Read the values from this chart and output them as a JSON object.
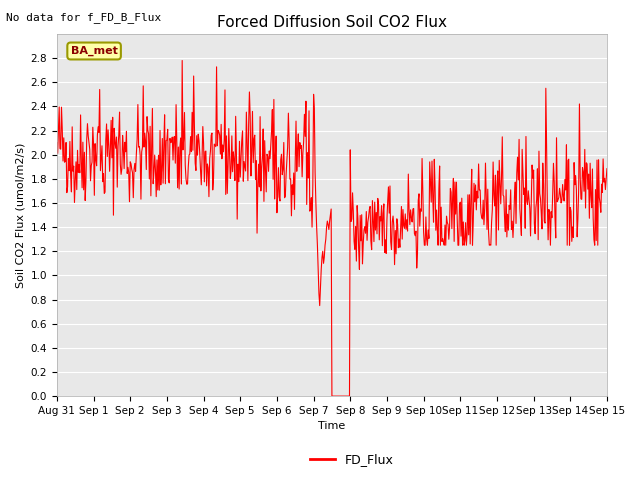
{
  "title": "Forced Diffusion Soil CO2 Flux",
  "no_data_text": "No data for f_FD_B_Flux",
  "xlabel": "Time",
  "ylabel_display": "Soil CO2 Flux (umol/m2/s)",
  "ylim": [
    0.0,
    3.0
  ],
  "yticks": [
    0.0,
    0.2,
    0.4,
    0.6,
    0.8,
    1.0,
    1.2,
    1.4,
    1.6,
    1.8,
    2.0,
    2.2,
    2.4,
    2.6,
    2.8
  ],
  "line_color": "#FF0000",
  "line_width": 0.8,
  "bg_color": "#E8E8E8",
  "legend_label": "FD_Flux",
  "ba_met_label": "BA_met",
  "title_fontsize": 11,
  "axis_label_fontsize": 8,
  "tick_fontsize": 7.5,
  "no_data_fontsize": 8,
  "ba_met_fontsize": 8
}
